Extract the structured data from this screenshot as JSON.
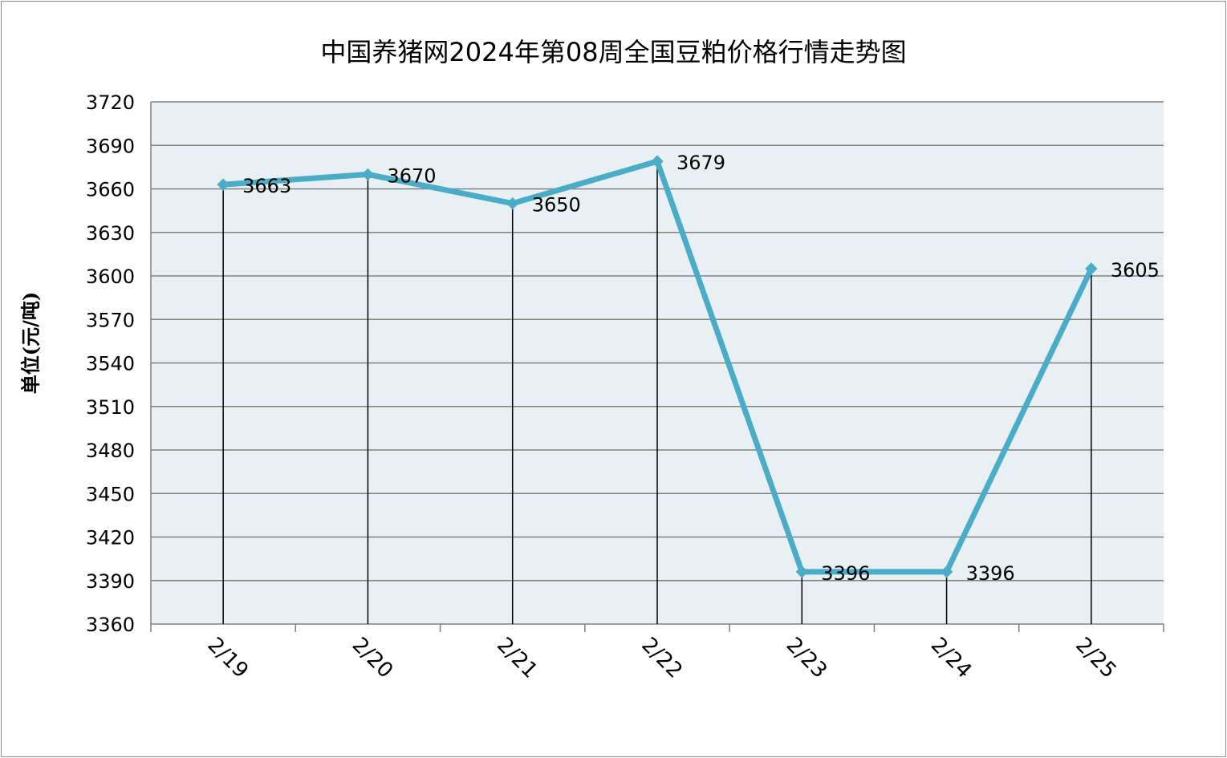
{
  "chart_data": {
    "type": "line",
    "title": "中国养猪网2024年第08周全国豆粕价格行情走势图",
    "xlabel": "",
    "ylabel": "单位(元/吨)",
    "categories": [
      "2/19",
      "2/20",
      "2/21",
      "2/22",
      "2/23",
      "2/24",
      "2/25"
    ],
    "series": [
      {
        "values": [
          3663,
          3670,
          3650,
          3679,
          3396,
          3396,
          3605
        ]
      }
    ],
    "data_labels": [
      "3663",
      "3670",
      "3650",
      "3679",
      "3396",
      "3396",
      "3605"
    ],
    "ylim": [
      3360,
      3720
    ],
    "yticks": [
      "3720",
      "3690",
      "3660",
      "3630",
      "3600",
      "3570",
      "3540",
      "3510",
      "3480",
      "3450",
      "3420",
      "3390",
      "3360"
    ],
    "grid": true,
    "drop_lines": true,
    "legend": "none",
    "colors": {
      "line": "#4bacc6",
      "plot_bg": "#e9f0f4",
      "grid": "#808080",
      "drop_line": "#000000"
    }
  }
}
